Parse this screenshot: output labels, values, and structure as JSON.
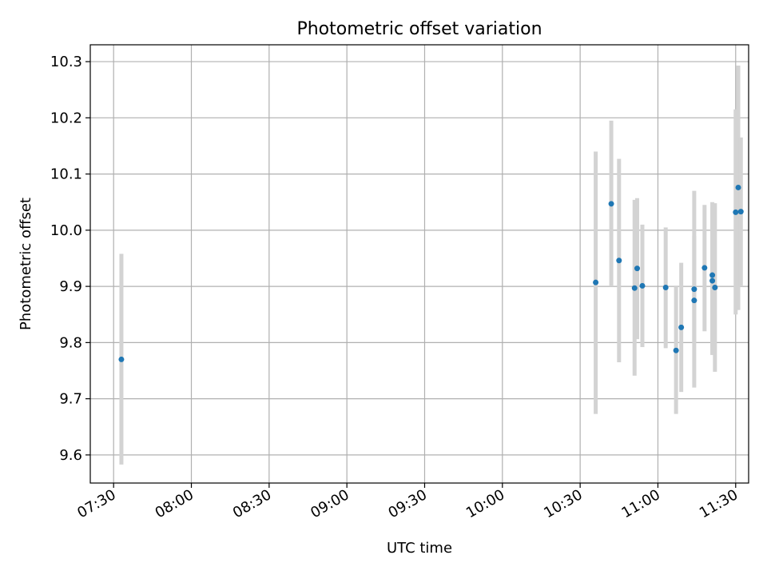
{
  "chart_data": {
    "type": "scatter",
    "title": "Photometric offset variation",
    "xlabel": "UTC time",
    "ylabel": "Photometric offset",
    "grid": true,
    "x_ticks": [
      "07:30",
      "08:00",
      "08:30",
      "09:00",
      "09:30",
      "10:00",
      "10:30",
      "11:00",
      "11:30"
    ],
    "y_ticks": [
      "9.6",
      "9.7",
      "9.8",
      "9.9",
      "10.0",
      "10.1",
      "10.2",
      "10.3"
    ],
    "xlim": [
      "07:21",
      "11:35"
    ],
    "ylim": [
      9.55,
      10.33
    ],
    "marker_color": "#1f77b4",
    "errorbar_color": "#d3d3d3",
    "series": [
      {
        "points": [
          {
            "x": "07:33",
            "y": 9.77,
            "yerr_low": 9.583,
            "yerr_high": 9.958
          },
          {
            "x": "10:36",
            "y": 9.907,
            "yerr_low": 9.673,
            "yerr_high": 10.14
          },
          {
            "x": "10:42",
            "y": 10.047,
            "yerr_low": 9.9,
            "yerr_high": 10.195
          },
          {
            "x": "10:45",
            "y": 9.946,
            "yerr_low": 9.765,
            "yerr_high": 10.127
          },
          {
            "x": "10:51",
            "y": 9.897,
            "yerr_low": 9.741,
            "yerr_high": 10.054
          },
          {
            "x": "10:52",
            "y": 9.932,
            "yerr_low": 9.806,
            "yerr_high": 10.057
          },
          {
            "x": "10:54",
            "y": 9.901,
            "yerr_low": 9.792,
            "yerr_high": 10.01
          },
          {
            "x": "11:03",
            "y": 9.898,
            "yerr_low": 9.79,
            "yerr_high": 10.005
          },
          {
            "x": "11:07",
            "y": 9.786,
            "yerr_low": 9.673,
            "yerr_high": 9.9
          },
          {
            "x": "11:09",
            "y": 9.827,
            "yerr_low": 9.712,
            "yerr_high": 9.942
          },
          {
            "x": "11:14",
            "y": 9.875,
            "yerr_low": 9.72,
            "yerr_high": 10.07
          },
          {
            "x": "11:14",
            "y": 9.895,
            "yerr_low": 9.8,
            "yerr_high": 9.99
          },
          {
            "x": "11:18",
            "y": 9.933,
            "yerr_low": 9.82,
            "yerr_high": 10.045
          },
          {
            "x": "11:21",
            "y": 9.91,
            "yerr_low": 9.778,
            "yerr_high": 10.043
          },
          {
            "x": "11:21",
            "y": 9.92,
            "yerr_low": 9.79,
            "yerr_high": 10.05
          },
          {
            "x": "11:22",
            "y": 9.898,
            "yerr_low": 9.748,
            "yerr_high": 10.048
          },
          {
            "x": "11:30",
            "y": 10.032,
            "yerr_low": 9.85,
            "yerr_high": 10.215
          },
          {
            "x": "11:31",
            "y": 10.076,
            "yerr_low": 9.858,
            "yerr_high": 10.293
          },
          {
            "x": "11:32",
            "y": 10.033,
            "yerr_low": 9.9,
            "yerr_high": 10.165
          }
        ]
      }
    ]
  }
}
